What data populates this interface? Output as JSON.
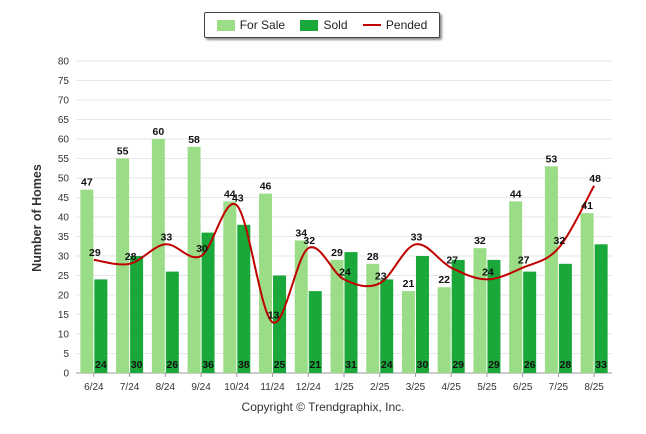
{
  "chart_data": {
    "type": "bar",
    "categories": [
      "6/24",
      "7/24",
      "8/24",
      "9/24",
      "10/24",
      "11/24",
      "12/24",
      "1/25",
      "2/25",
      "3/25",
      "4/25",
      "5/25",
      "6/25",
      "7/25",
      "8/25"
    ],
    "series": [
      {
        "name": "For Sale",
        "type": "bar",
        "color": "#9bdc86",
        "values": [
          47,
          55,
          60,
          58,
          44,
          46,
          34,
          29,
          28,
          21,
          22,
          32,
          44,
          53,
          41
        ]
      },
      {
        "name": "Sold",
        "type": "bar",
        "color": "#1aa83a",
        "values": [
          24,
          30,
          26,
          36,
          38,
          25,
          21,
          31,
          24,
          30,
          29,
          29,
          26,
          28,
          33
        ]
      },
      {
        "name": "Pended",
        "type": "line",
        "color": "#c00000",
        "values": [
          29,
          28,
          33,
          30,
          43,
          13,
          32,
          24,
          23,
          33,
          27,
          24,
          27,
          32,
          48
        ]
      }
    ],
    "ylabel": "Number of Homes",
    "ylim": [
      0,
      80
    ],
    "yticks": [
      0,
      5,
      10,
      15,
      20,
      25,
      30,
      35,
      40,
      45,
      50,
      55,
      60,
      65,
      70,
      75,
      80
    ],
    "grid": true,
    "legend_position": "top-center"
  },
  "legend": {
    "for_sale": "For Sale",
    "sold": "Sold",
    "pended": "Pended"
  },
  "footer": "Copyright © Trendgraphix, Inc."
}
